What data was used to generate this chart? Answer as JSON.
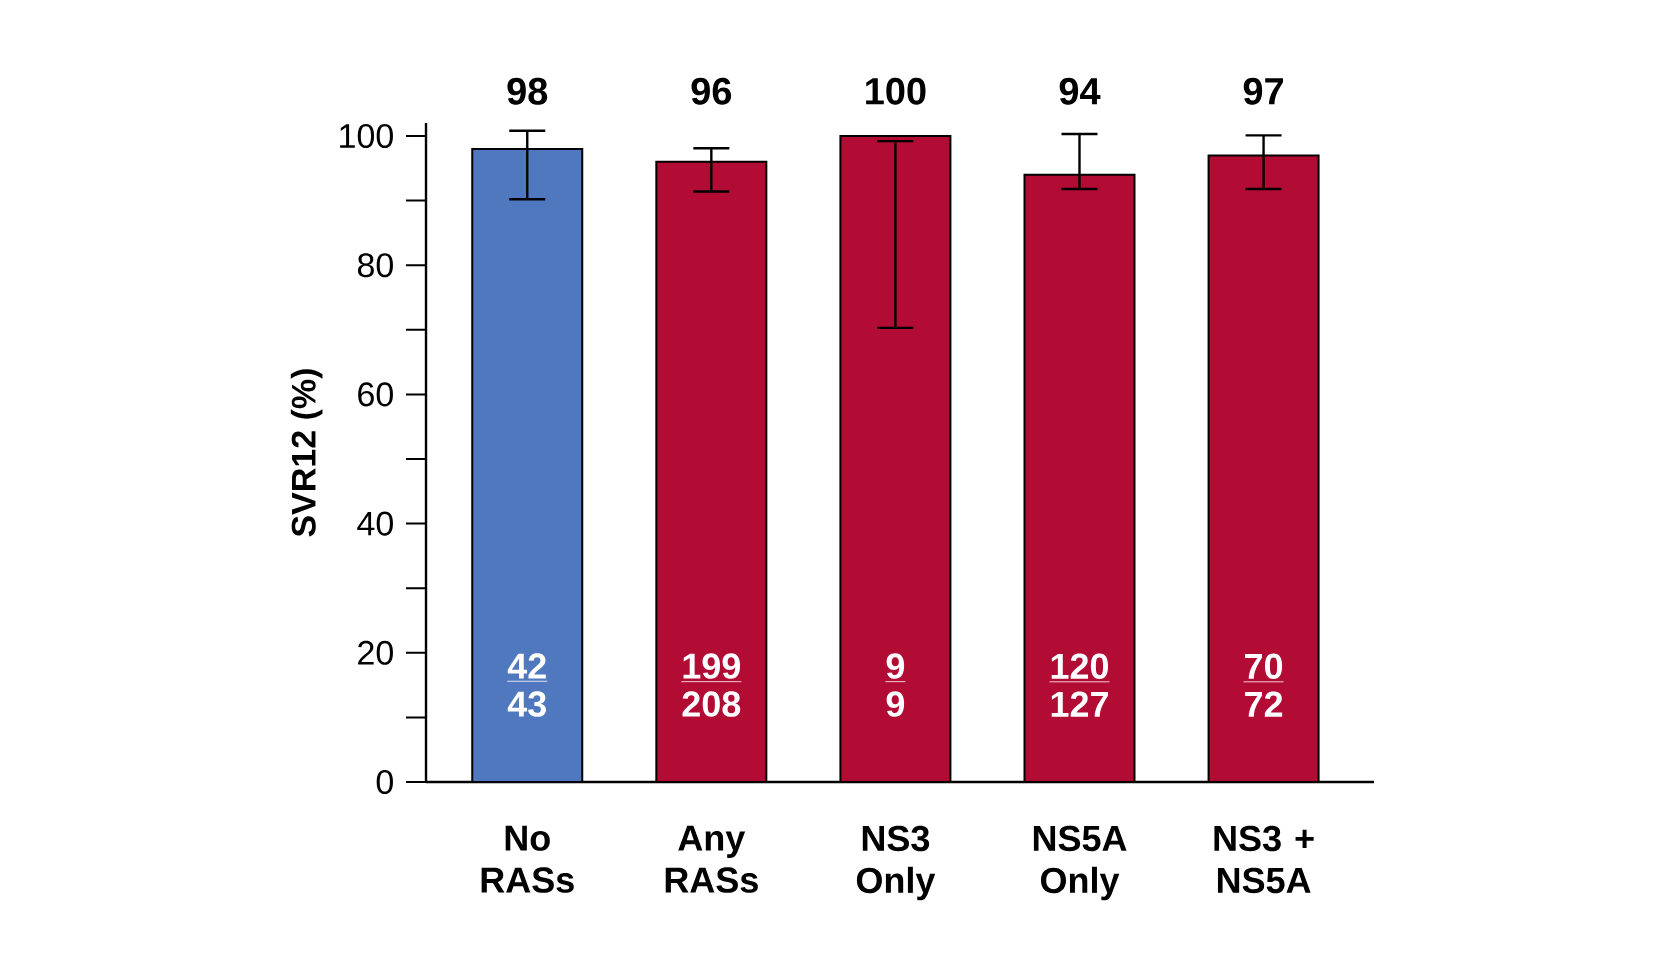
{
  "chart_data": {
    "type": "bar",
    "ylabel": "SVR12 (%)",
    "categories": [
      "No RASs",
      "Any RASs",
      "NS3 Only",
      "NS5A Only",
      "NS3 + NS5A"
    ],
    "values": [
      98,
      96,
      100,
      94,
      97
    ],
    "colors": [
      "#5078be",
      "#b20c35",
      "#b20c35",
      "#b20c35",
      "#b20c35"
    ],
    "errors": [
      [
        90.2,
        100.8
      ],
      [
        91.4,
        98.1
      ],
      [
        70.3,
        99.2
      ],
      [
        91.8,
        100.3
      ],
      [
        91.8,
        100.1
      ]
    ],
    "data_labels": true,
    "annotations": [
      "42",
      "43",
      "199",
      "208",
      "9",
      "9",
      "120",
      "127",
      "70",
      "72"
    ],
    "ylim": [
      0,
      102
    ],
    "yticks": [
      0,
      {
        "value": 10,
        "label": null
      },
      20,
      {
        "value": 30,
        "label": null
      },
      40,
      {
        "value": 50,
        "label": null
      },
      60,
      {
        "value": 70,
        "label": null
      },
      80,
      {
        "value": 90,
        "label": null
      },
      100
    ],
    "grid": false
  }
}
